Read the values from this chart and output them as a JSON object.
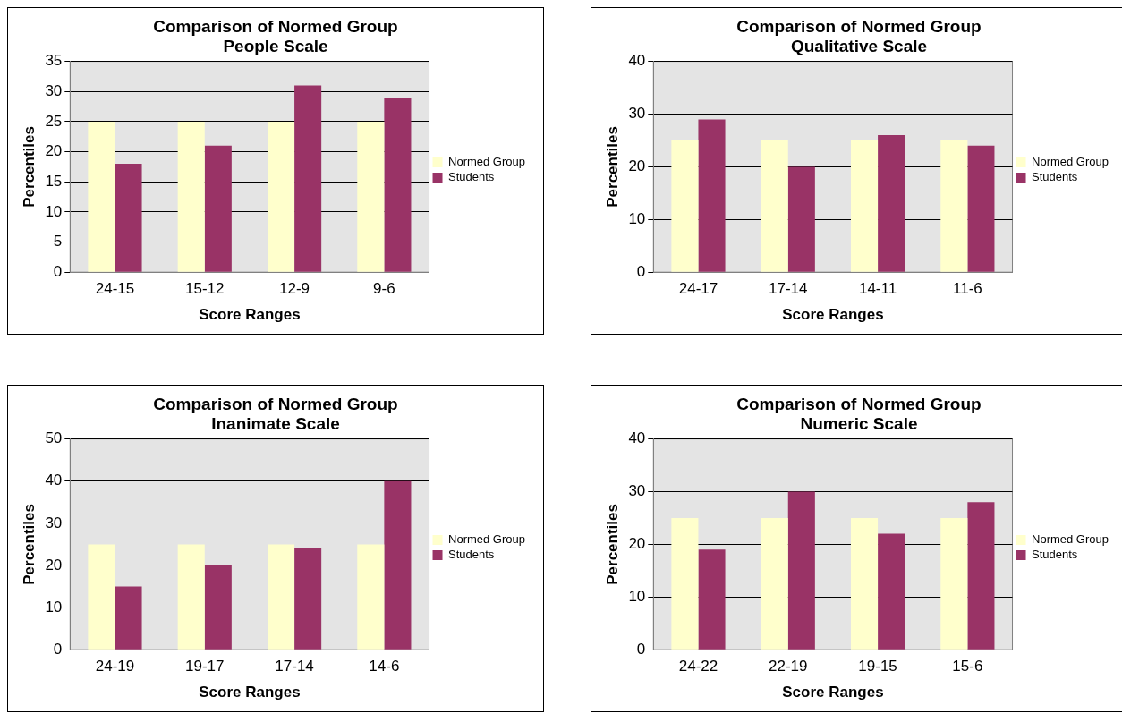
{
  "chart_data": [
    {
      "type": "bar",
      "title": [
        "Comparison of Normed Group",
        "People Scale"
      ],
      "xlabel": "Score Ranges",
      "ylabel": "Percentiles",
      "categories": [
        "24-15",
        "15-12",
        "12-9",
        "9-6"
      ],
      "series": [
        {
          "name": "Normed Group",
          "color": "#ffffcc",
          "values": [
            25,
            25,
            25,
            25
          ]
        },
        {
          "name": "Students",
          "color": "#993366",
          "values": [
            18,
            21,
            31,
            29
          ]
        }
      ],
      "ylim": [
        0,
        35
      ],
      "yticks": [
        0,
        5,
        10,
        15,
        20,
        25,
        30,
        35
      ],
      "grid": "y",
      "legend": "right"
    },
    {
      "type": "bar",
      "title": [
        "Comparison of Normed Group",
        "Qualitative Scale"
      ],
      "xlabel": "Score Ranges",
      "ylabel": "Percentiles",
      "categories": [
        "24-17",
        "17-14",
        "14-11",
        "11-6"
      ],
      "series": [
        {
          "name": "Normed Group",
          "color": "#ffffcc",
          "values": [
            25,
            25,
            25,
            25
          ]
        },
        {
          "name": "Students",
          "color": "#993366",
          "values": [
            29,
            20,
            26,
            24
          ]
        }
      ],
      "ylim": [
        0,
        40
      ],
      "yticks": [
        0,
        10,
        20,
        30,
        40
      ],
      "grid": "y",
      "legend": "right"
    },
    {
      "type": "bar",
      "title": [
        "Comparison of Normed Group",
        "Inanimate Scale"
      ],
      "xlabel": "Score Ranges",
      "ylabel": "Percentiles",
      "categories": [
        "24-19",
        "19-17",
        "17-14",
        "14-6"
      ],
      "series": [
        {
          "name": "Normed Group",
          "color": "#ffffcc",
          "values": [
            25,
            25,
            25,
            25
          ]
        },
        {
          "name": "Students",
          "color": "#993366",
          "values": [
            15,
            20,
            24,
            40
          ]
        }
      ],
      "ylim": [
        0,
        50
      ],
      "yticks": [
        0,
        10,
        20,
        30,
        40,
        50
      ],
      "grid": "y",
      "legend": "right"
    },
    {
      "type": "bar",
      "title": [
        "Comparison of Normed Group",
        "Numeric Scale"
      ],
      "xlabel": "Score Ranges",
      "ylabel": "Percentiles",
      "categories": [
        "24-22",
        "22-19",
        "19-15",
        "15-6"
      ],
      "series": [
        {
          "name": "Normed Group",
          "color": "#ffffcc",
          "values": [
            25,
            25,
            25,
            25
          ]
        },
        {
          "name": "Students",
          "color": "#993366",
          "values": [
            19,
            30,
            22,
            28
          ]
        }
      ],
      "ylim": [
        0,
        40
      ],
      "yticks": [
        0,
        10,
        20,
        30,
        40
      ],
      "grid": "y",
      "legend": "right"
    }
  ]
}
